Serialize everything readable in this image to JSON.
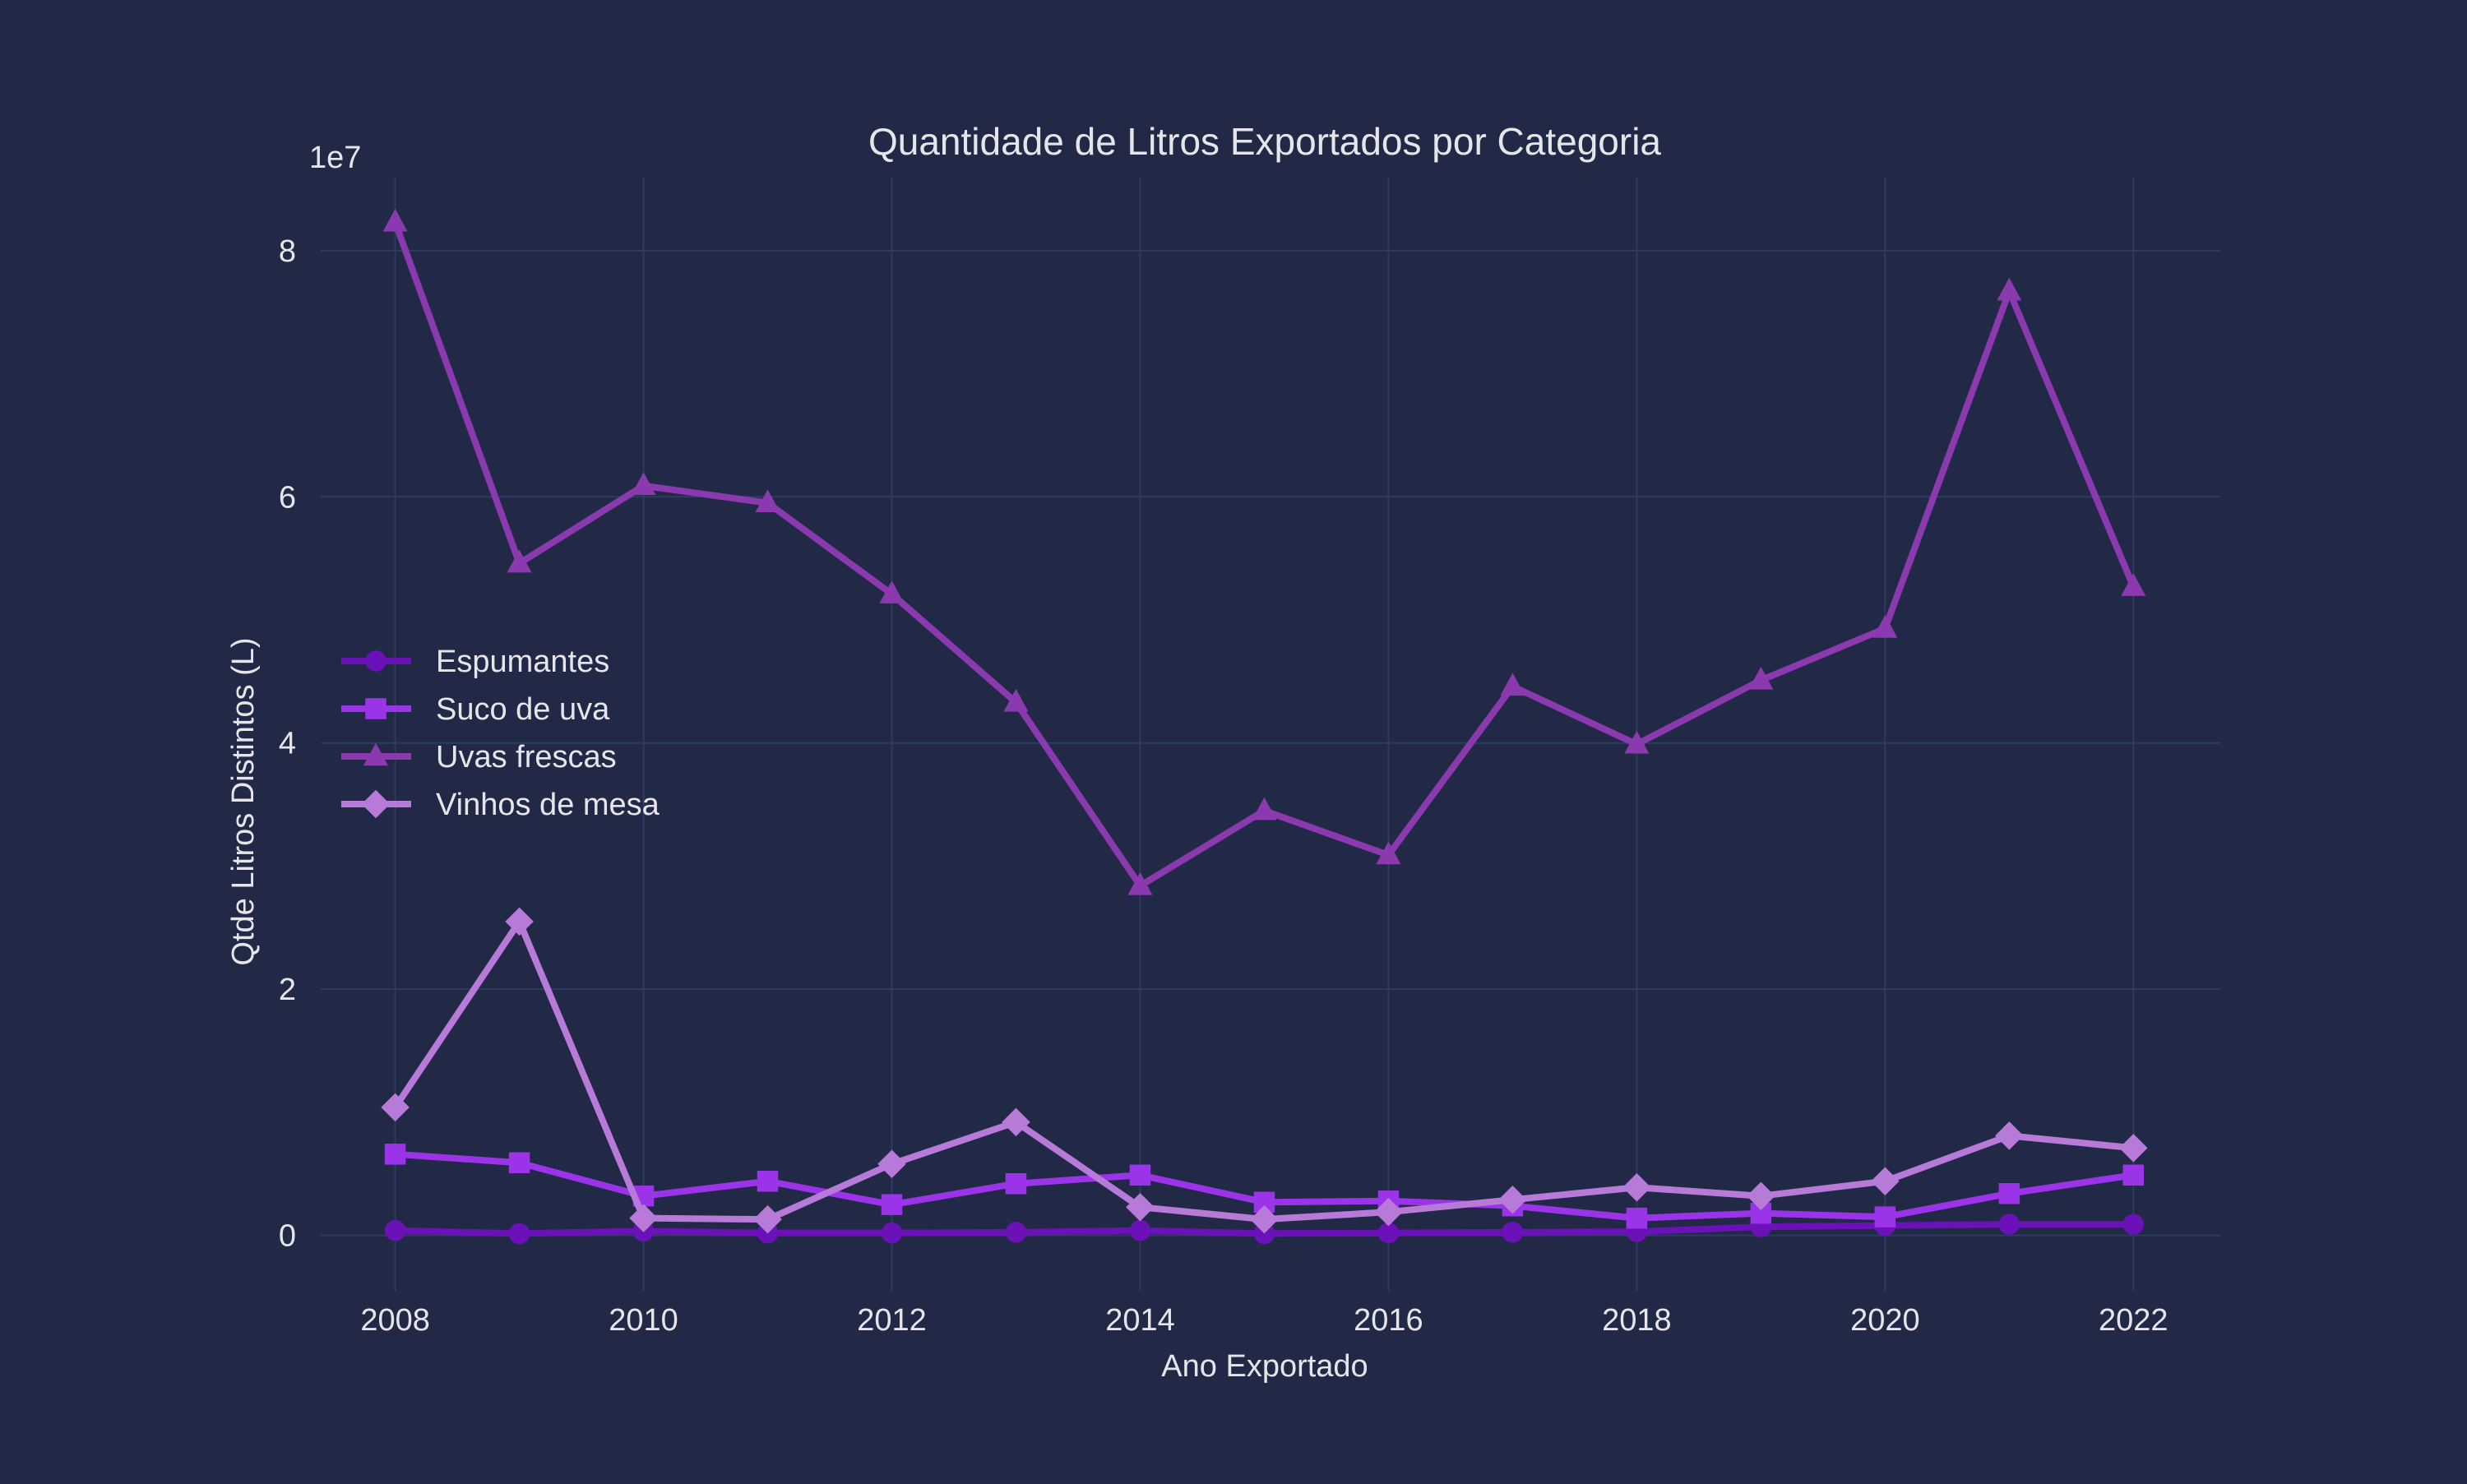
{
  "chart_data": {
    "type": "line",
    "title": "Quantidade de Litros Exportados por Categoria",
    "xlabel": "Ano Exportado",
    "ylabel": "Qtde Litros Distintos (L)",
    "y_offset_label": "1e7",
    "x": [
      2008,
      2009,
      2010,
      2011,
      2012,
      2013,
      2014,
      2015,
      2016,
      2017,
      2018,
      2019,
      2020,
      2021,
      2022
    ],
    "xlim": [
      2007.4,
      2022.7
    ],
    "ylim": [
      -4500000,
      86000000
    ],
    "x_ticks": [
      2008,
      2010,
      2012,
      2014,
      2016,
      2018,
      2020,
      2022
    ],
    "y_ticks": [
      0,
      20000000,
      40000000,
      60000000,
      80000000
    ],
    "y_tick_labels": [
      "0",
      "2",
      "4",
      "6",
      "8"
    ],
    "grid": true,
    "legend_position": "center-left",
    "series": [
      {
        "name": "Espumantes",
        "color": "#6A12B8",
        "marker": "circle",
        "values": [
          400000,
          150000,
          350000,
          200000,
          200000,
          250000,
          400000,
          150000,
          200000,
          250000,
          300000,
          700000,
          800000,
          900000,
          900000
        ]
      },
      {
        "name": "Suco de uva",
        "color": "#9B34E8",
        "marker": "square",
        "values": [
          6600000,
          5900000,
          3200000,
          4400000,
          2500000,
          4200000,
          4900000,
          2700000,
          2800000,
          2400000,
          1400000,
          1800000,
          1500000,
          3400000,
          4900000
        ]
      },
      {
        "name": "Uvas frescas",
        "color": "#8A3AAE",
        "marker": "triangle",
        "values": [
          82300000,
          54600000,
          60900000,
          59500000,
          52100000,
          43300000,
          28400000,
          34500000,
          30900000,
          44600000,
          39900000,
          45100000,
          49300000,
          76700000,
          52700000
        ]
      },
      {
        "name": "Vinhos de mesa",
        "color": "#B77AD9",
        "marker": "diamond",
        "values": [
          10400000,
          25500000,
          1400000,
          1300000,
          5800000,
          9200000,
          2300000,
          1300000,
          1900000,
          2900000,
          3900000,
          3200000,
          4400000,
          8100000,
          7100000
        ]
      }
    ]
  }
}
